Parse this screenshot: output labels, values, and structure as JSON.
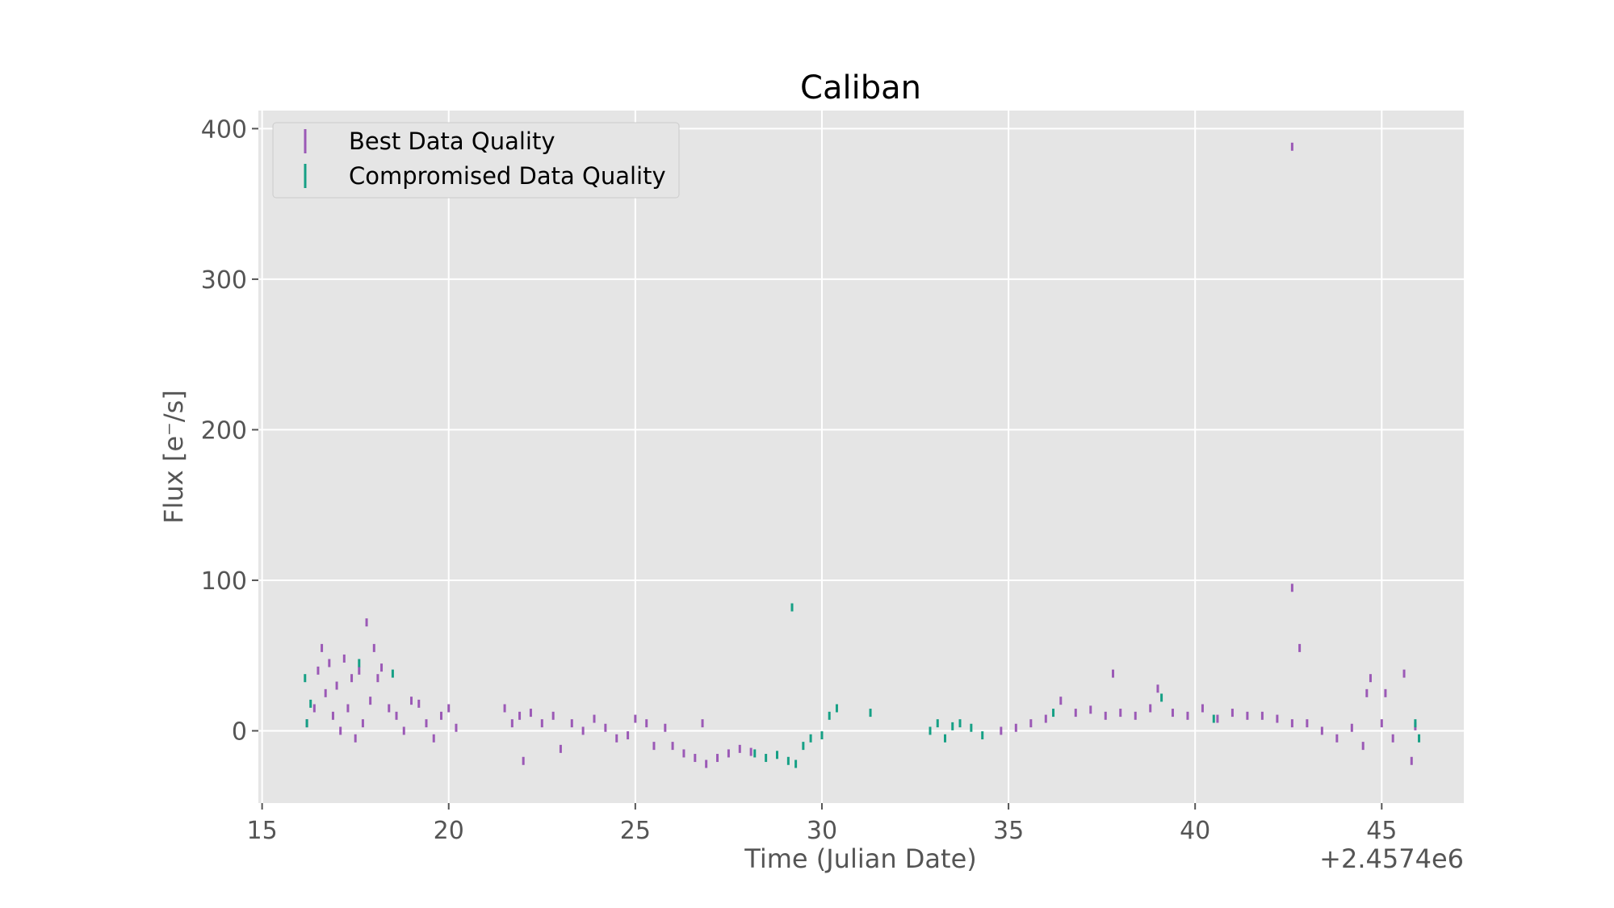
{
  "chart_data": {
    "type": "scatter",
    "title": "Caliban",
    "xlabel": "Time (Julian Date)",
    "ylabel": "Flux [e⁻/s]",
    "x_offset_label": "+2.4574e6",
    "xlim": [
      14.9,
      47.2
    ],
    "ylim": [
      -48,
      412
    ],
    "xticks": [
      15,
      20,
      25,
      30,
      35,
      40,
      45
    ],
    "yticks": [
      0,
      100,
      200,
      300,
      400
    ],
    "grid": true,
    "legend_position": "top-left",
    "colors": {
      "plot_bg": "#e5e5e5",
      "best": "#9b59b6",
      "compromised": "#16a085",
      "grid": "#ffffff"
    },
    "series": [
      {
        "name": "Best Data Quality",
        "key": "best",
        "points": [
          [
            16.2,
            5
          ],
          [
            16.4,
            15
          ],
          [
            16.5,
            40
          ],
          [
            16.6,
            55
          ],
          [
            16.7,
            25
          ],
          [
            16.8,
            45
          ],
          [
            16.9,
            10
          ],
          [
            17.0,
            30
          ],
          [
            17.1,
            0
          ],
          [
            17.2,
            48
          ],
          [
            17.3,
            15
          ],
          [
            17.4,
            35
          ],
          [
            17.5,
            -5
          ],
          [
            17.6,
            40
          ],
          [
            17.7,
            5
          ],
          [
            17.8,
            72
          ],
          [
            17.9,
            20
          ],
          [
            18.0,
            55
          ],
          [
            18.1,
            35
          ],
          [
            18.2,
            42
          ],
          [
            18.4,
            15
          ],
          [
            18.6,
            10
          ],
          [
            18.8,
            0
          ],
          [
            19.0,
            20
          ],
          [
            19.2,
            18
          ],
          [
            19.4,
            5
          ],
          [
            19.6,
            -5
          ],
          [
            19.8,
            10
          ],
          [
            20.0,
            15
          ],
          [
            20.2,
            2
          ],
          [
            21.5,
            15
          ],
          [
            21.7,
            5
          ],
          [
            21.9,
            10
          ],
          [
            22.0,
            -20
          ],
          [
            22.2,
            12
          ],
          [
            22.5,
            5
          ],
          [
            22.8,
            10
          ],
          [
            23.0,
            -12
          ],
          [
            23.3,
            5
          ],
          [
            23.6,
            0
          ],
          [
            23.9,
            8
          ],
          [
            24.2,
            2
          ],
          [
            24.5,
            -5
          ],
          [
            24.8,
            -3
          ],
          [
            25.0,
            8
          ],
          [
            25.3,
            5
          ],
          [
            25.5,
            -10
          ],
          [
            25.8,
            2
          ],
          [
            26.0,
            -10
          ],
          [
            26.3,
            -15
          ],
          [
            26.6,
            -18
          ],
          [
            26.9,
            -22
          ],
          [
            27.2,
            -18
          ],
          [
            27.5,
            -15
          ],
          [
            27.8,
            -12
          ],
          [
            28.1,
            -14
          ],
          [
            26.8,
            5
          ],
          [
            34.8,
            0
          ],
          [
            35.2,
            2
          ],
          [
            35.6,
            5
          ],
          [
            36.0,
            8
          ],
          [
            36.4,
            20
          ],
          [
            36.8,
            12
          ],
          [
            37.2,
            14
          ],
          [
            37.6,
            10
          ],
          [
            37.8,
            38
          ],
          [
            38.0,
            12
          ],
          [
            38.4,
            10
          ],
          [
            38.8,
            15
          ],
          [
            39.0,
            28
          ],
          [
            39.4,
            12
          ],
          [
            39.8,
            10
          ],
          [
            40.2,
            15
          ],
          [
            40.6,
            8
          ],
          [
            41.0,
            12
          ],
          [
            41.4,
            10
          ],
          [
            41.8,
            10
          ],
          [
            42.2,
            8
          ],
          [
            42.6,
            5
          ],
          [
            42.6,
            388
          ],
          [
            42.6,
            95
          ],
          [
            42.8,
            55
          ],
          [
            43.0,
            5
          ],
          [
            43.4,
            0
          ],
          [
            43.8,
            -5
          ],
          [
            44.2,
            2
          ],
          [
            44.5,
            -10
          ],
          [
            44.6,
            25
          ],
          [
            44.7,
            35
          ],
          [
            45.0,
            5
          ],
          [
            45.1,
            25
          ],
          [
            45.3,
            -5
          ],
          [
            45.6,
            38
          ],
          [
            45.8,
            -20
          ],
          [
            45.9,
            3
          ]
        ]
      },
      {
        "name": "Compromised Data Quality",
        "key": "compromised",
        "points": [
          [
            16.15,
            35
          ],
          [
            16.2,
            5
          ],
          [
            16.3,
            18
          ],
          [
            17.6,
            45
          ],
          [
            18.5,
            38
          ],
          [
            28.2,
            -15
          ],
          [
            28.5,
            -18
          ],
          [
            28.8,
            -16
          ],
          [
            29.1,
            -20
          ],
          [
            29.2,
            82
          ],
          [
            29.3,
            -22
          ],
          [
            29.5,
            -10
          ],
          [
            29.7,
            -5
          ],
          [
            30.0,
            -3
          ],
          [
            30.2,
            10
          ],
          [
            30.4,
            15
          ],
          [
            31.3,
            12
          ],
          [
            32.9,
            0
          ],
          [
            33.1,
            5
          ],
          [
            33.3,
            -5
          ],
          [
            33.5,
            3
          ],
          [
            33.7,
            5
          ],
          [
            34.0,
            2
          ],
          [
            34.3,
            -3
          ],
          [
            36.2,
            12
          ],
          [
            39.1,
            22
          ],
          [
            40.5,
            8
          ],
          [
            45.9,
            5
          ],
          [
            46.0,
            -5
          ]
        ]
      }
    ]
  }
}
